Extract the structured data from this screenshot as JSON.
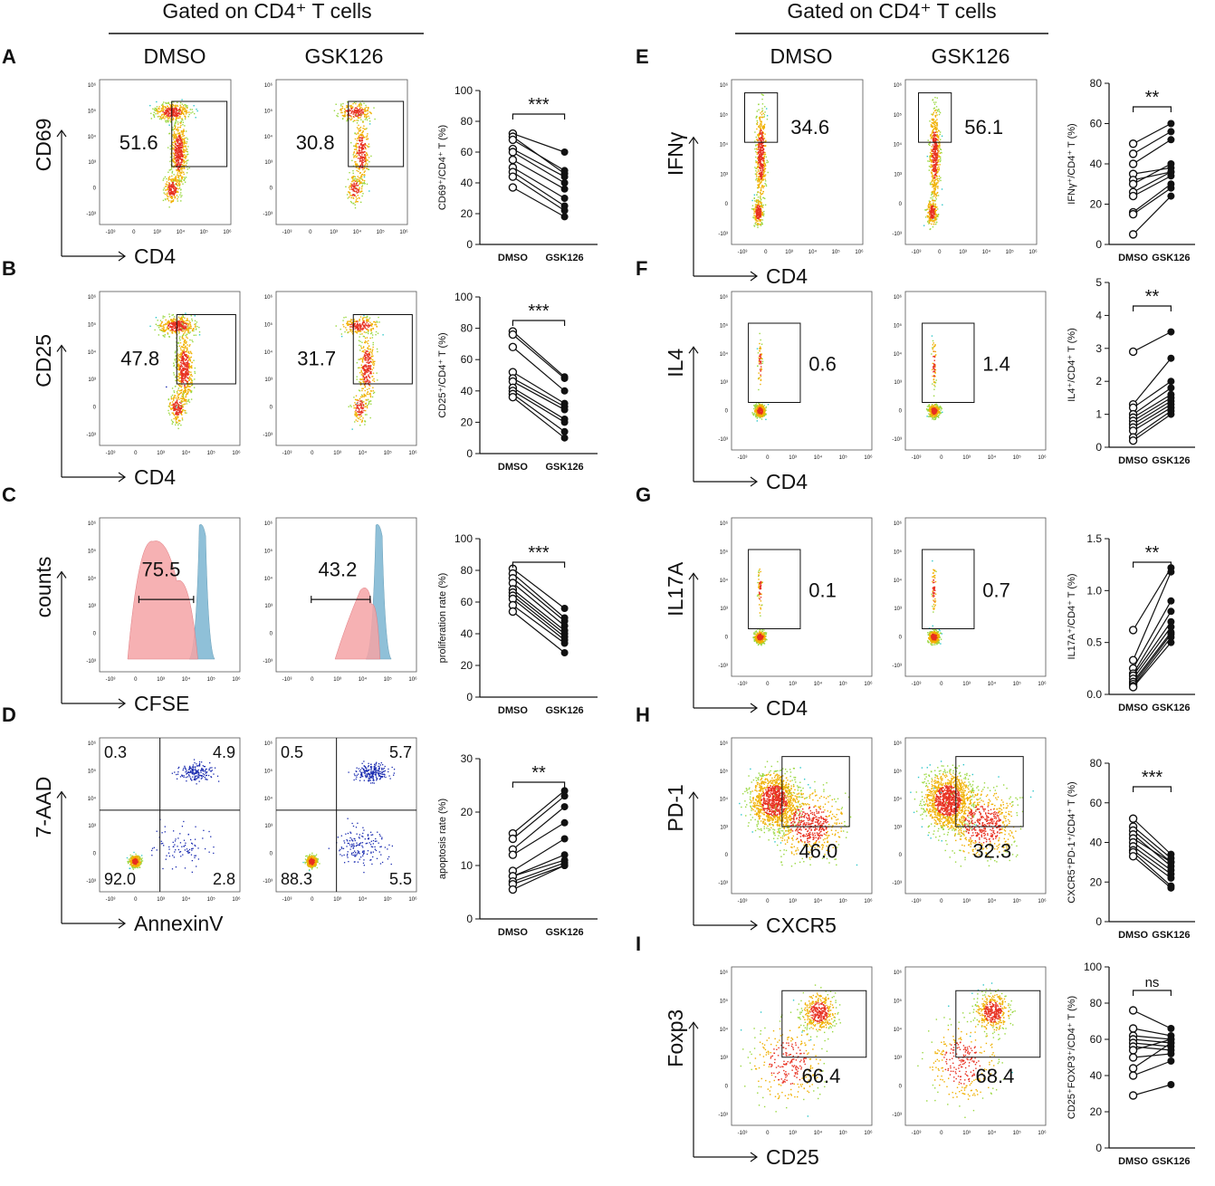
{
  "header": {
    "left_title": "Gated on CD4⁺ T cells",
    "right_title": "Gated on CD4⁺ T cells",
    "col_dmso": "DMSO",
    "col_gsk": "GSK126"
  },
  "flow_tick_labels": [
    "-10³",
    "0",
    "10³",
    "10⁴",
    "10⁵",
    "10⁶"
  ],
  "colors": {
    "dmso_hist": "#f4a3a6",
    "gsk_hist": "#8fc0d8",
    "dot_low": "#1a2bb0",
    "dot_mid": "#2fc7c9",
    "dot_high": "#e83020"
  },
  "panels": [
    {
      "letter": "A",
      "type": "dot",
      "ylabel": "CD69",
      "xlabel": "CD4",
      "gate": "box",
      "values": [
        "51.6",
        "30.8"
      ],
      "plot_y": "CD69⁺/CD4⁺ T (%)",
      "ylim": [
        0,
        100
      ],
      "yticks": [
        0,
        20,
        40,
        60,
        80,
        100
      ],
      "sig": "***",
      "pairs": [
        [
          72,
          60
        ],
        [
          70,
          46
        ],
        [
          68,
          48
        ],
        [
          62,
          44
        ],
        [
          60,
          40
        ],
        [
          55,
          36
        ],
        [
          50,
          30
        ],
        [
          47,
          25
        ],
        [
          44,
          22
        ],
        [
          37,
          18
        ]
      ]
    },
    {
      "letter": "B",
      "type": "dot",
      "ylabel": "CD25",
      "xlabel": "CD4",
      "gate": "box",
      "values": [
        "47.8",
        "31.7"
      ],
      "plot_y": "CD25⁺/CD4⁺ T (%)",
      "ylim": [
        0,
        100
      ],
      "yticks": [
        0,
        20,
        40,
        60,
        80,
        100
      ],
      "sig": "***",
      "pairs": [
        [
          78,
          49
        ],
        [
          76,
          48
        ],
        [
          68,
          40
        ],
        [
          52,
          32
        ],
        [
          48,
          30
        ],
        [
          46,
          28
        ],
        [
          42,
          22
        ],
        [
          40,
          20
        ],
        [
          38,
          14
        ],
        [
          36,
          10
        ]
      ]
    },
    {
      "letter": "C",
      "type": "hist",
      "ylabel": "counts",
      "xlabel": "CFSE",
      "gate": "bar",
      "values": [
        "75.5",
        "43.2"
      ],
      "plot_y": "proliferation rate (%)",
      "ylim": [
        0,
        100
      ],
      "yticks": [
        0,
        20,
        40,
        60,
        80,
        100
      ],
      "sig": "***",
      "pairs": [
        [
          81,
          56
        ],
        [
          78,
          50
        ],
        [
          75,
          48
        ],
        [
          72,
          45
        ],
        [
          68,
          42
        ],
        [
          66,
          40
        ],
        [
          64,
          38
        ],
        [
          62,
          36
        ],
        [
          58,
          34
        ],
        [
          54,
          28
        ]
      ]
    },
    {
      "letter": "D",
      "type": "quad",
      "ylabel": "7-AAD",
      "xlabel": "AnnexinV",
      "quads": [
        [
          "0.3",
          "4.9",
          "92.0",
          "2.8"
        ],
        [
          "0.5",
          "5.7",
          "88.3",
          "5.5"
        ]
      ],
      "plot_y": "apoptosis rate (%)",
      "ylim": [
        0,
        30
      ],
      "yticks": [
        0,
        10,
        20,
        30
      ],
      "sig": "**",
      "pairs": [
        [
          16,
          24
        ],
        [
          15,
          23
        ],
        [
          13,
          21
        ],
        [
          12,
          18
        ],
        [
          9,
          15
        ],
        [
          8,
          12
        ],
        [
          8,
          11
        ],
        [
          7,
          10.5
        ],
        [
          6.5,
          10
        ],
        [
          5.5,
          10
        ]
      ]
    },
    {
      "letter": "E",
      "type": "dot",
      "ylabel": "IFNγ",
      "xlabel": "CD4",
      "gate": "tall",
      "values": [
        "34.6",
        "56.1"
      ],
      "plot_y": "IFNγ⁺/CD4⁺ T (%)",
      "ylim": [
        0,
        80
      ],
      "yticks": [
        0,
        20,
        40,
        60,
        80
      ],
      "sig": "**",
      "pairs": [
        [
          50,
          60
        ],
        [
          45,
          56
        ],
        [
          40,
          52
        ],
        [
          35,
          38
        ],
        [
          32,
          36
        ],
        [
          30,
          40
        ],
        [
          26,
          36
        ],
        [
          24,
          34
        ],
        [
          16,
          30
        ],
        [
          15,
          28
        ],
        [
          5,
          24
        ]
      ]
    },
    {
      "letter": "F",
      "type": "dot",
      "ylabel": "IL4",
      "xlabel": "CD4",
      "gate": "box",
      "values": [
        "0.6",
        "1.4"
      ],
      "plot_y": "IL4⁺/CD4⁺ T (%)",
      "ylim": [
        0,
        5
      ],
      "yticks": [
        0,
        1,
        2,
        3,
        4,
        5
      ],
      "sig": "**",
      "pairs": [
        [
          2.9,
          3.5
        ],
        [
          1.3,
          2.7
        ],
        [
          1.2,
          2.0
        ],
        [
          1.0,
          1.8
        ],
        [
          0.9,
          1.6
        ],
        [
          0.8,
          1.5
        ],
        [
          0.7,
          1.4
        ],
        [
          0.6,
          1.3
        ],
        [
          0.5,
          1.2
        ],
        [
          0.3,
          1.1
        ],
        [
          0.2,
          1.0
        ]
      ]
    },
    {
      "letter": "G",
      "type": "dot",
      "ylabel": "IL17A",
      "xlabel": "CD4",
      "gate": "box",
      "values": [
        "0.1",
        "0.7"
      ],
      "plot_y": "IL17A⁺/CD4⁺ T (%)",
      "ylim": [
        0,
        1.5
      ],
      "yticks": [
        "0.0",
        "0.5",
        "1.0",
        "1.5"
      ],
      "sig": "**",
      "pairs": [
        [
          0.62,
          1.22
        ],
        [
          0.33,
          1.18
        ],
        [
          0.25,
          0.9
        ],
        [
          0.2,
          0.8
        ],
        [
          0.18,
          0.7
        ],
        [
          0.15,
          0.65
        ],
        [
          0.12,
          0.6
        ],
        [
          0.1,
          0.58
        ],
        [
          0.08,
          0.55
        ],
        [
          0.07,
          0.5
        ]
      ]
    },
    {
      "letter": "H",
      "type": "dot",
      "ylabel": "PD-1",
      "xlabel": "CXCR5",
      "gate": "box",
      "values": [
        "46.0",
        "32.3"
      ],
      "plot_y": "CXCR5⁺PD-1⁺/CD4⁺ T (%)",
      "ylim": [
        0,
        80
      ],
      "yticks": [
        0,
        20,
        40,
        60,
        80
      ],
      "sig": "***",
      "pairs": [
        [
          52,
          34
        ],
        [
          48,
          32
        ],
        [
          46,
          30
        ],
        [
          44,
          28
        ],
        [
          42,
          30
        ],
        [
          40,
          26
        ],
        [
          38,
          24
        ],
        [
          36,
          22
        ],
        [
          35,
          18
        ],
        [
          33,
          17
        ]
      ]
    },
    {
      "letter": "I",
      "type": "dot",
      "ylabel": "Foxp3",
      "xlabel": "CD25",
      "gate": "box",
      "values": [
        "66.4",
        "68.4"
      ],
      "plot_y": "CD25⁺FOXP3⁺/CD4⁺ T (%)",
      "ylim": [
        0,
        100
      ],
      "yticks": [
        0,
        20,
        40,
        60,
        80,
        100
      ],
      "sig": "ns",
      "pairs": [
        [
          76,
          66
        ],
        [
          66,
          62
        ],
        [
          62,
          60
        ],
        [
          60,
          58
        ],
        [
          58,
          56
        ],
        [
          56,
          54
        ],
        [
          54,
          60
        ],
        [
          50,
          52
        ],
        [
          44,
          58
        ],
        [
          40,
          48
        ],
        [
          29,
          35
        ]
      ]
    }
  ],
  "chart_data": [
    {
      "type": "scatter",
      "panel": "A",
      "title": "",
      "xlabel": "",
      "ylabel": "CD69⁺/CD4⁺ T (%)",
      "categories": [
        "DMSO",
        "GSK126"
      ],
      "ylim": [
        0,
        100
      ],
      "significance": "***",
      "series": [
        {
          "name": "DMSO",
          "values": [
            72,
            70,
            68,
            62,
            60,
            55,
            50,
            47,
            44,
            37
          ]
        },
        {
          "name": "GSK126",
          "values": [
            60,
            46,
            48,
            44,
            40,
            36,
            30,
            25,
            22,
            18
          ]
        }
      ]
    },
    {
      "type": "scatter",
      "panel": "B",
      "title": "",
      "xlabel": "",
      "ylabel": "CD25⁺/CD4⁺ T (%)",
      "categories": [
        "DMSO",
        "GSK126"
      ],
      "ylim": [
        0,
        100
      ],
      "significance": "***",
      "series": [
        {
          "name": "DMSO",
          "values": [
            78,
            76,
            68,
            52,
            48,
            46,
            42,
            40,
            38,
            36
          ]
        },
        {
          "name": "GSK126",
          "values": [
            49,
            48,
            40,
            32,
            30,
            28,
            22,
            20,
            14,
            10
          ]
        }
      ]
    },
    {
      "type": "scatter",
      "panel": "C",
      "title": "",
      "xlabel": "",
      "ylabel": "proliferation rate (%)",
      "categories": [
        "DMSO",
        "GSK126"
      ],
      "ylim": [
        0,
        100
      ],
      "significance": "***",
      "series": [
        {
          "name": "DMSO",
          "values": [
            81,
            78,
            75,
            72,
            68,
            66,
            64,
            62,
            58,
            54
          ]
        },
        {
          "name": "GSK126",
          "values": [
            56,
            50,
            48,
            45,
            42,
            40,
            38,
            36,
            34,
            28
          ]
        }
      ]
    },
    {
      "type": "scatter",
      "panel": "D",
      "title": "",
      "xlabel": "",
      "ylabel": "apoptosis rate (%)",
      "categories": [
        "DMSO",
        "GSK126"
      ],
      "ylim": [
        0,
        30
      ],
      "significance": "**",
      "series": [
        {
          "name": "DMSO",
          "values": [
            16,
            15,
            13,
            12,
            9,
            8,
            8,
            7,
            6.5,
            5.5
          ]
        },
        {
          "name": "GSK126",
          "values": [
            24,
            23,
            21,
            18,
            15,
            12,
            11,
            10.5,
            10,
            10
          ]
        }
      ]
    },
    {
      "type": "scatter",
      "panel": "E",
      "title": "",
      "xlabel": "",
      "ylabel": "IFNγ⁺/CD4⁺ T (%)",
      "categories": [
        "DMSO",
        "GSK126"
      ],
      "ylim": [
        0,
        80
      ],
      "significance": "**",
      "series": [
        {
          "name": "DMSO",
          "values": [
            50,
            45,
            40,
            35,
            32,
            30,
            26,
            24,
            16,
            15,
            5
          ]
        },
        {
          "name": "GSK126",
          "values": [
            60,
            56,
            52,
            38,
            36,
            40,
            36,
            34,
            30,
            28,
            24
          ]
        }
      ]
    },
    {
      "type": "scatter",
      "panel": "F",
      "title": "",
      "xlabel": "",
      "ylabel": "IL4⁺/CD4⁺ T (%)",
      "categories": [
        "DMSO",
        "GSK126"
      ],
      "ylim": [
        0,
        5
      ],
      "significance": "**",
      "series": [
        {
          "name": "DMSO",
          "values": [
            2.9,
            1.3,
            1.2,
            1.0,
            0.9,
            0.8,
            0.7,
            0.6,
            0.5,
            0.3,
            0.2
          ]
        },
        {
          "name": "GSK126",
          "values": [
            3.5,
            2.7,
            2.0,
            1.8,
            1.6,
            1.5,
            1.4,
            1.3,
            1.2,
            1.1,
            1.0
          ]
        }
      ]
    },
    {
      "type": "scatter",
      "panel": "G",
      "title": "",
      "xlabel": "",
      "ylabel": "IL17A⁺/CD4⁺ T (%)",
      "categories": [
        "DMSO",
        "GSK126"
      ],
      "ylim": [
        0,
        1.5
      ],
      "significance": "**",
      "series": [
        {
          "name": "DMSO",
          "values": [
            0.62,
            0.33,
            0.25,
            0.2,
            0.18,
            0.15,
            0.12,
            0.1,
            0.08,
            0.07
          ]
        },
        {
          "name": "GSK126",
          "values": [
            1.22,
            1.18,
            0.9,
            0.8,
            0.7,
            0.65,
            0.6,
            0.58,
            0.55,
            0.5
          ]
        }
      ]
    },
    {
      "type": "scatter",
      "panel": "H",
      "title": "",
      "xlabel": "",
      "ylabel": "CXCR5⁺PD-1⁺/CD4⁺ T (%)",
      "categories": [
        "DMSO",
        "GSK126"
      ],
      "ylim": [
        0,
        80
      ],
      "significance": "***",
      "series": [
        {
          "name": "DMSO",
          "values": [
            52,
            48,
            46,
            44,
            42,
            40,
            38,
            36,
            35,
            33
          ]
        },
        {
          "name": "GSK126",
          "values": [
            34,
            32,
            30,
            28,
            30,
            26,
            24,
            22,
            18,
            17
          ]
        }
      ]
    },
    {
      "type": "scatter",
      "panel": "I",
      "title": "",
      "xlabel": "",
      "ylabel": "CD25⁺FOXP3⁺/CD4⁺ T (%)",
      "categories": [
        "DMSO",
        "GSK126"
      ],
      "ylim": [
        0,
        100
      ],
      "significance": "ns",
      "series": [
        {
          "name": "DMSO",
          "values": [
            76,
            66,
            62,
            60,
            58,
            56,
            54,
            50,
            44,
            40,
            29
          ]
        },
        {
          "name": "GSK126",
          "values": [
            66,
            62,
            60,
            58,
            56,
            54,
            60,
            52,
            58,
            48,
            35
          ]
        }
      ]
    }
  ]
}
